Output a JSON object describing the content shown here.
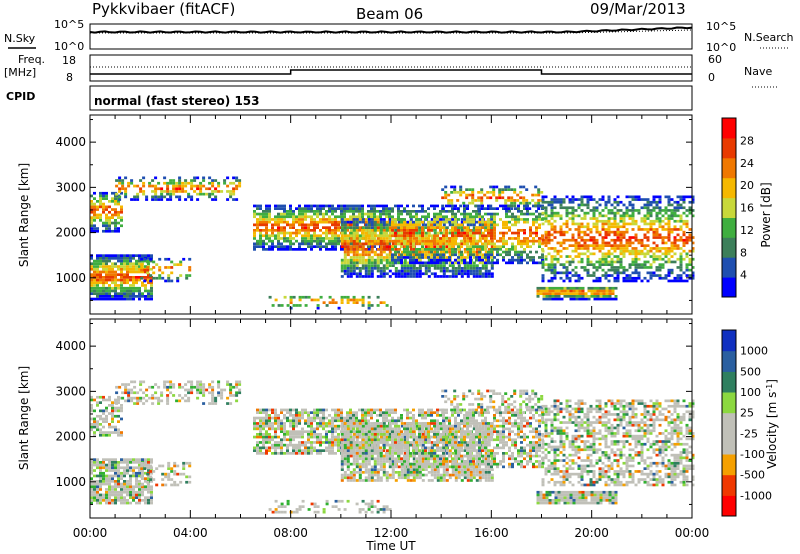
{
  "header": {
    "station": "Pykkvibaer (fitACF)",
    "beam": "Beam 06",
    "date": "09/Mar/2013"
  },
  "colors": {
    "power": [
      "#0000ff",
      "#1f4fb0",
      "#3c7f5a",
      "#3fae3f",
      "#c8d83a",
      "#f5b800",
      "#f07800",
      "#e83a00",
      "#ff0000"
    ],
    "velocity": [
      "#ff0000",
      "#f03800",
      "#f07800",
      "#f5a000",
      "#c0c0b8",
      "#c0c0b8",
      "#8cd840",
      "#30b030",
      "#2f7f5f",
      "#2a5fa0",
      "#1030c0"
    ],
    "gray": "#c0c0b8"
  },
  "status_panels": {
    "nsky_label": "N.Sky",
    "nsky_top": "10^5",
    "nsky_bottom": "10^0",
    "nsearch_label": "N.Search",
    "nsearch_top": "10^5",
    "nsearch_bottom": "10^0",
    "freq_label_1": "Freq.",
    "freq_label_2": "[MHz]",
    "freq_top": "18",
    "freq_bottom": "8",
    "nave_label": "Nave",
    "nave_top": "60",
    "nave_bottom": "0",
    "cpid_label": "CPID",
    "cpid_text": "normal (fast stereo) 153"
  },
  "chart_data": [
    {
      "type": "heatmap",
      "name": "power",
      "ylabel": "Slant Range [km]",
      "yticks": [
        "1000",
        "2000",
        "3000",
        "4000"
      ],
      "ylim": [
        200,
        4600
      ],
      "xlim_hours": [
        0,
        24
      ],
      "colorbar_label": "Power [dB]",
      "colorbar_ticks": [
        "4",
        "8",
        "12",
        "16",
        "20",
        "24",
        "28"
      ],
      "colorbar_range": [
        0,
        32
      ]
    },
    {
      "type": "heatmap",
      "name": "velocity",
      "ylabel": "Slant Range [km]",
      "yticks": [
        "1000",
        "2000",
        "3000",
        "4000"
      ],
      "ylim": [
        200,
        4600
      ],
      "xlim_hours": [
        0,
        24
      ],
      "colorbar_label": "Velocity [m s^-1]",
      "colorbar_ticks": [
        "-1000",
        "-500",
        "-100",
        "-25",
        "25",
        "100",
        "500",
        "1000"
      ]
    }
  ],
  "xaxis": {
    "ticks": [
      "00:00",
      "04:00",
      "08:00",
      "12:00",
      "16:00",
      "20:00",
      "00:00"
    ],
    "tick_hours": [
      0,
      4,
      8,
      12,
      16,
      20,
      24
    ],
    "label": "Time UT"
  }
}
